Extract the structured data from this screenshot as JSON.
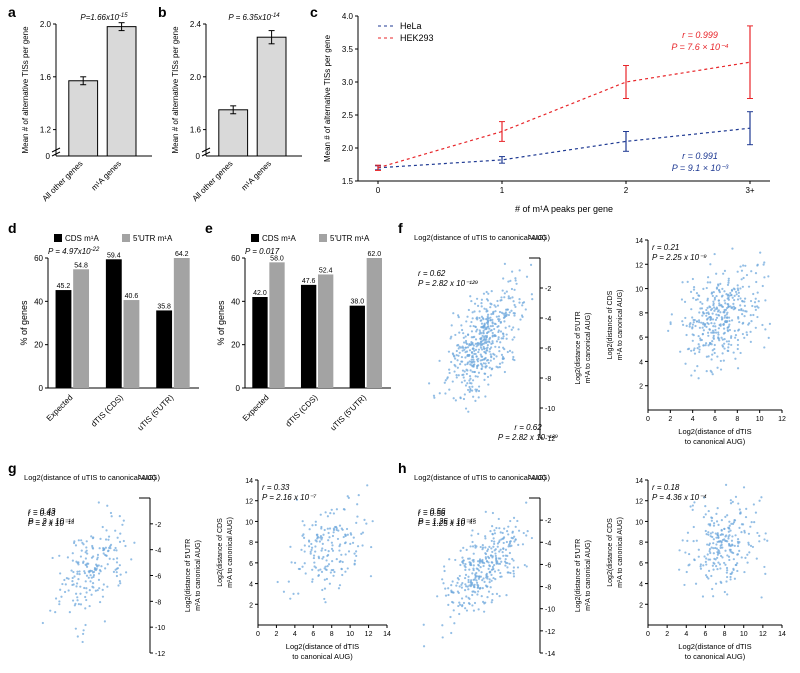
{
  "panel_a": {
    "label": "a",
    "type": "bar",
    "pval": "P=1.66x10",
    "pval_exp": "-15",
    "ylabel": "Mean # of alternative TISs per gene",
    "ylim": [
      0,
      2.0
    ],
    "yticks": [
      0,
      1.2,
      1.6,
      2.0
    ],
    "categories": [
      "All other genes",
      "m¹A genes"
    ],
    "values": [
      1.57,
      1.98
    ],
    "errors": [
      0.03,
      0.03
    ],
    "bar_color": "#d9d9d9",
    "border_color": "#000000"
  },
  "panel_b": {
    "label": "b",
    "type": "bar",
    "pval": "P = 6.35x10",
    "pval_exp": "-14",
    "ylabel": "Mean # of alternative TISs per gene",
    "ylim": [
      0,
      2.4
    ],
    "yticks": [
      0,
      1.6,
      2.0,
      2.4
    ],
    "categories": [
      "All other genes",
      "m¹A genes"
    ],
    "values": [
      1.75,
      2.3
    ],
    "errors": [
      0.03,
      0.05
    ],
    "bar_color": "#d9d9d9",
    "border_color": "#000000"
  },
  "panel_c": {
    "label": "c",
    "type": "scatter-line",
    "ylabel": "Mean # of alternative TISs per gene",
    "xlabel": "# of m¹A peaks per gene",
    "ylim": [
      1.5,
      4.0
    ],
    "yticks": [
      1.5,
      2.0,
      2.5,
      3.0,
      3.5,
      4.0
    ],
    "xticks": [
      "0",
      "1",
      "2",
      "3+"
    ],
    "series": [
      {
        "name": "HeLa",
        "color": "#1f3a93",
        "r": "r = 0.991",
        "p": "P = 9.1 × 10⁻³",
        "y": [
          1.7,
          1.82,
          2.1,
          2.3
        ],
        "err": [
          0.03,
          0.05,
          0.15,
          0.25
        ]
      },
      {
        "name": "HEK293",
        "color": "#e8262a",
        "r": "r = 0.999",
        "p": "P = 7.6 × 10⁻⁴",
        "y": [
          1.7,
          2.25,
          3.0,
          3.3
        ],
        "err": [
          0.04,
          0.15,
          0.25,
          0.55
        ]
      }
    ]
  },
  "panel_d": {
    "label": "d",
    "type": "grouped-bar",
    "pval": "P = 4.97x10",
    "pval_exp": "-22",
    "ylabel": "% of genes",
    "legend": [
      "CDS m¹A",
      "5'UTR m¹A"
    ],
    "colors": [
      "#000000",
      "#a3a3a3"
    ],
    "categories": [
      "Expected",
      "dTIS (CDS)",
      "uTIS (5'UTR)"
    ],
    "data": [
      [
        45.2,
        54.8
      ],
      [
        59.4,
        40.6
      ],
      [
        35.8,
        64.2
      ]
    ],
    "ylim": [
      0,
      60
    ],
    "yticks": [
      0,
      20,
      40,
      60
    ]
  },
  "panel_e": {
    "label": "e",
    "type": "grouped-bar",
    "pval": "P = 0.017",
    "ylabel": "% of genes",
    "legend": [
      "CDS m¹A",
      "5'UTR m¹A"
    ],
    "colors": [
      "#000000",
      "#a3a3a3"
    ],
    "categories": [
      "Expected",
      "dTIS (CDS)",
      "uTIS (5'UTR)"
    ],
    "data": [
      [
        42.0,
        58.0
      ],
      [
        47.6,
        52.4
      ],
      [
        38.0,
        62.0
      ]
    ],
    "ylim": [
      0,
      60
    ],
    "yticks": [
      0,
      20,
      40,
      60
    ]
  },
  "panel_f": {
    "label": "f",
    "left": {
      "xlabel": "Log2(distance of uTIS to canonical AUG)",
      "ylabel": "Log2(distance of 5'UTR m¹A to canonical AUG)",
      "r": "r = 0.62",
      "p": "P = 2.82 x 10⁻¹²⁹",
      "xlim": [
        -12,
        0
      ],
      "ylim": [
        -12,
        0
      ],
      "xticks": [
        -12,
        -10,
        -8,
        -6,
        -4,
        -2
      ],
      "yticks": [
        -2,
        -4,
        -6,
        -8,
        -10,
        -12
      ],
      "n": 500
    },
    "right": {
      "xlabel": "Log2(distance of dTIS to canonical AUG)",
      "ylabel": "Log2(distance of CDS m¹A to canonical AUG)",
      "r": "r = 0.21",
      "p": "P = 2.25 x 10⁻⁹",
      "xlim": [
        0,
        12
      ],
      "ylim": [
        0,
        14
      ],
      "xticks": [
        0,
        2,
        4,
        6,
        8,
        10,
        12
      ],
      "yticks": [
        2,
        4,
        6,
        8,
        10,
        12,
        14
      ],
      "n": 400
    }
  },
  "panel_g": {
    "label": "g",
    "left": {
      "xlabel": "Log2(distance of uTIS to canonical AUG)",
      "ylabel": "Log2(distance of 5'UTR m¹A to canonical AUG)",
      "r": "r = 0.43",
      "p": "P = 2 x 10⁻¹⁴",
      "xlim": [
        -12,
        0
      ],
      "ylim": [
        -12,
        0
      ],
      "xticks": [
        -12,
        -10,
        -8,
        -6,
        -4,
        -2
      ],
      "yticks": [
        -2,
        -4,
        -6,
        -8,
        -10,
        -12
      ],
      "n": 200
    },
    "right": {
      "xlabel": "Log2(distance of dTIS to canonical AUG)",
      "ylabel": "Log2(distance of CDS m¹A to canonical AUG)",
      "r": "r = 0.33",
      "p": "P = 2.16 x 10⁻⁷",
      "xlim": [
        0,
        14
      ],
      "ylim": [
        0,
        14
      ],
      "xticks": [
        0,
        2,
        4,
        6,
        8,
        10,
        12,
        14
      ],
      "yticks": [
        2,
        4,
        6,
        8,
        10,
        12,
        14
      ],
      "n": 180
    }
  },
  "panel_h": {
    "label": "h",
    "left": {
      "xlabel": "Log2(distance of uTIS to canonical AUG)",
      "ylabel": "Log2(distance of 5'UTR m¹A to canonical AUG)",
      "r": "r = 0.56",
      "p": "P = 1.25 x 10⁻⁴⁵",
      "xlim": [
        -14,
        0
      ],
      "ylim": [
        -14,
        0
      ],
      "xticks": [
        -14,
        -12,
        -10,
        -8,
        -6,
        -4,
        -2
      ],
      "yticks": [
        -2,
        -4,
        -6,
        -8,
        -10,
        -12,
        -14
      ],
      "n": 350
    },
    "right": {
      "xlabel": "Log2(distance of dTIS to canonical AUG)",
      "ylabel": "Log2(distance of CDS m¹A to canonical AUG)",
      "r": "r = 0.18",
      "p": "P = 4.36 x 10⁻⁴",
      "xlim": [
        0,
        14
      ],
      "ylim": [
        0,
        14
      ],
      "xticks": [
        0,
        2,
        4,
        6,
        8,
        10,
        12,
        14
      ],
      "yticks": [
        2,
        4,
        6,
        8,
        10,
        12,
        14
      ],
      "n": 250
    }
  },
  "dot_color": "#6fa8dc"
}
